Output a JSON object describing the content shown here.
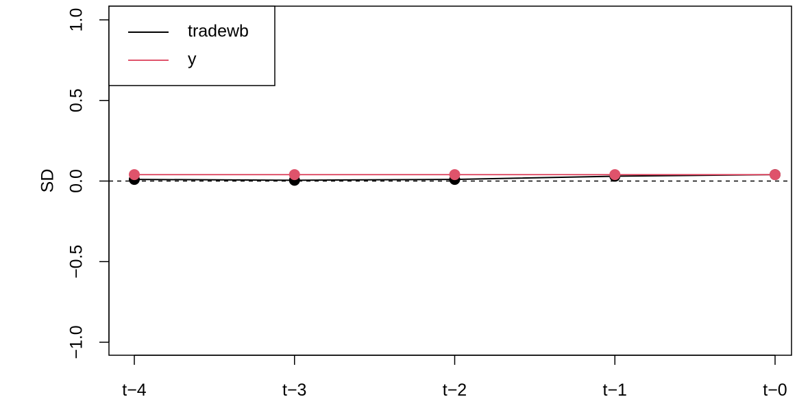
{
  "chart_data": {
    "type": "line",
    "categories": [
      "t−4",
      "t−3",
      "t−2",
      "t−1",
      "t−0"
    ],
    "ylabel": "SD",
    "xlabel": "",
    "title": "",
    "ylim": [
      -1.0,
      1.0
    ],
    "yticks": [
      "−1.0",
      "−0.5",
      "0.0",
      "0.5",
      "1.0"
    ],
    "ytick_values": [
      -1.0,
      -0.5,
      0.0,
      0.5,
      1.0
    ],
    "reference_line": 0.0,
    "grid": false,
    "legend_position": "top-left",
    "series": [
      {
        "name": "tradewb",
        "color": "#000000",
        "values": [
          0.01,
          0.005,
          0.01,
          0.03,
          0.04
        ]
      },
      {
        "name": "y",
        "color": "#DF536B",
        "values": [
          0.04,
          0.04,
          0.04,
          0.04,
          0.04
        ]
      }
    ]
  }
}
